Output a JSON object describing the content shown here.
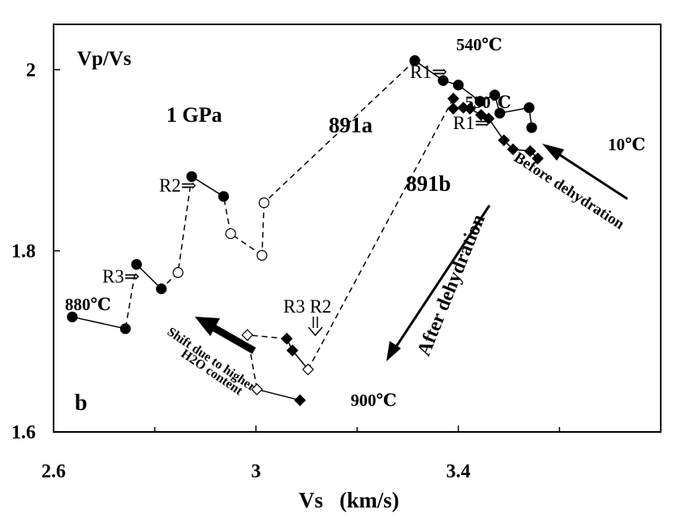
{
  "chart_data": {
    "type": "scatter",
    "xlabel": "Vs   (km/s)",
    "ylabel": "Vp/Vs",
    "xlim": [
      2.6,
      3.8
    ],
    "ylim": [
      1.6,
      2.05
    ],
    "xticks": [
      2.6,
      3.0,
      3.4
    ],
    "xtick_labels": [
      "2.6",
      "3",
      "3.4"
    ],
    "yticks": [
      1.6,
      1.8,
      2.0
    ],
    "ytick_labels": [
      "1.6",
      "1.8",
      "2"
    ],
    "grid": false,
    "panel_label": "b",
    "pressure_label": "1 GPa",
    "series": [
      {
        "name": "891a",
        "marker": "circle",
        "points": [
          {
            "x": 3.545,
            "y": 1.936,
            "filled": true
          },
          {
            "x": 3.54,
            "y": 1.958,
            "filled": true
          },
          {
            "x": 3.482,
            "y": 1.952,
            "filled": true
          },
          {
            "x": 3.472,
            "y": 1.972,
            "filled": true
          },
          {
            "x": 3.443,
            "y": 1.965,
            "filled": true
          },
          {
            "x": 3.4,
            "y": 1.983,
            "filled": true
          },
          {
            "x": 3.37,
            "y": 1.988,
            "filled": true
          },
          {
            "x": 3.314,
            "y": 2.01,
            "filled": true
          },
          {
            "x": 3.016,
            "y": 1.853,
            "filled": false
          },
          {
            "x": 3.012,
            "y": 1.795,
            "filled": false
          },
          {
            "x": 2.95,
            "y": 1.819,
            "filled": false
          },
          {
            "x": 2.936,
            "y": 1.86,
            "filled": true
          },
          {
            "x": 2.873,
            "y": 1.882,
            "filled": true
          },
          {
            "x": 2.846,
            "y": 1.776,
            "filled": false
          },
          {
            "x": 2.813,
            "y": 1.758,
            "filled": true
          },
          {
            "x": 2.764,
            "y": 1.785,
            "filled": true
          },
          {
            "x": 2.742,
            "y": 1.714,
            "filled": true
          },
          {
            "x": 2.637,
            "y": 1.727,
            "filled": true
          }
        ],
        "segment_styles": [
          "solid",
          "solid",
          "solid",
          "solid",
          "solid",
          "solid",
          "solid",
          "dashed",
          "dashed",
          "dashed",
          "dashed",
          "solid",
          "dashed",
          "dashed",
          "solid",
          "dashed",
          "solid"
        ]
      },
      {
        "name": "891b",
        "marker": "diamond",
        "points": [
          {
            "x": 3.557,
            "y": 1.902,
            "filled": true
          },
          {
            "x": 3.542,
            "y": 1.91,
            "filled": true
          },
          {
            "x": 3.508,
            "y": 1.912,
            "filled": true
          },
          {
            "x": 3.49,
            "y": 1.922,
            "filled": true
          },
          {
            "x": 3.46,
            "y": 1.946,
            "filled": true
          },
          {
            "x": 3.445,
            "y": 1.95,
            "filled": true
          },
          {
            "x": 3.423,
            "y": 1.957,
            "filled": true
          },
          {
            "x": 3.41,
            "y": 1.958,
            "filled": true
          },
          {
            "x": 3.39,
            "y": 1.957,
            "filled": true
          },
          {
            "x": 3.39,
            "y": 1.968,
            "filled": true
          },
          {
            "x": 3.103,
            "y": 1.669,
            "filled": false
          },
          {
            "x": 3.072,
            "y": 1.69,
            "filled": true
          },
          {
            "x": 3.061,
            "y": 1.703,
            "filled": true
          },
          {
            "x": 2.983,
            "y": 1.707,
            "filled": false
          },
          {
            "x": 3.002,
            "y": 1.647,
            "filled": false
          },
          {
            "x": 3.087,
            "y": 1.635,
            "filled": true
          }
        ],
        "segment_styles": [
          "solid",
          "solid",
          "solid",
          "solid",
          "solid",
          "solid",
          "solid",
          "solid",
          "solid",
          "dashed",
          "solid",
          "solid",
          "dashed",
          "dashed",
          "solid"
        ]
      }
    ],
    "annotations": {
      "t540": "540℃",
      "t530": "530℃",
      "t10": "10℃",
      "t880": "880℃",
      "t900": "900℃",
      "r1a": "R1⇒",
      "r1b": "R1⇒",
      "r2": "R2⇒",
      "r3": "R3⇒",
      "r3r2": "R3 R2",
      "before": "Before dehydration",
      "after": "After dehydration",
      "shift_line1": "Shift due to higher",
      "shift_line2": "H2O content"
    }
  }
}
